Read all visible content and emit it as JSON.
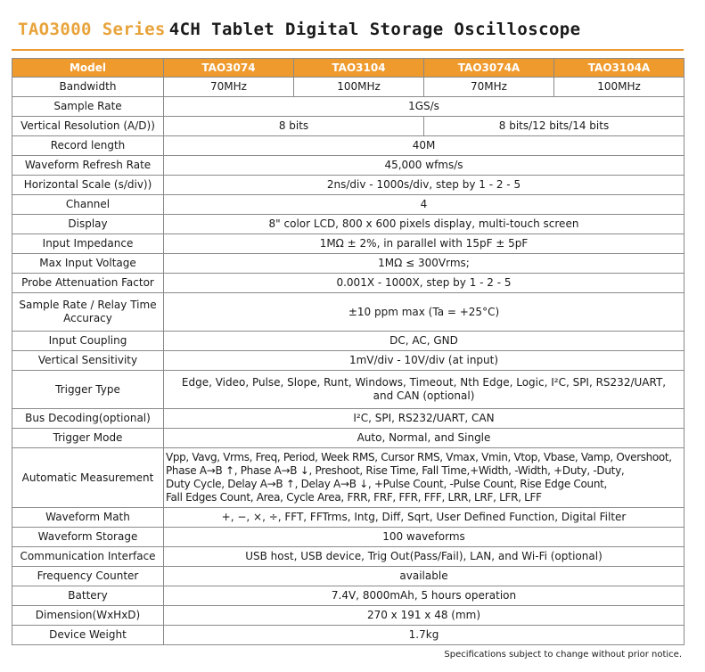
{
  "title": {
    "series": "TAO3000 Series",
    "rest": "4CH Tablet Digital Storage Oscilloscope"
  },
  "table": {
    "header": {
      "model": "Model",
      "m1": "TAO3074",
      "m2": "TAO3104",
      "m3": "TAO3074A",
      "m4": "TAO3104A"
    },
    "bandwidth": {
      "label": "Bandwidth",
      "v1": "70MHz",
      "v2": "100MHz",
      "v3": "70MHz",
      "v4": "100MHz"
    },
    "sample_rate": {
      "label": "Sample Rate",
      "value": "1GS/s"
    },
    "vertical_resolution": {
      "label": "Vertical Resolution (A/D))",
      "v12": "8 bits",
      "v34": "8 bits/12 bits/14 bits"
    },
    "record_length": {
      "label": "Record length",
      "value": "40M"
    },
    "refresh_rate": {
      "label": "Waveform Refresh Rate",
      "value": "45,000 wfms/s"
    },
    "horizontal_scale": {
      "label": "Horizontal Scale (s/div))",
      "value": "2ns/div - 1000s/div, step by 1 - 2 - 5"
    },
    "channel": {
      "label": "Channel",
      "value": "4"
    },
    "display": {
      "label": "Display",
      "value": "8\" color LCD, 800 x 600 pixels display,  multi-touch screen"
    },
    "input_impedance": {
      "label": "Input Impedance",
      "value": "1MΩ ± 2%, in parallel with 15pF ± 5pF"
    },
    "max_input_voltage": {
      "label": "Max Input Voltage",
      "value": "1MΩ ≤ 300Vrms;"
    },
    "probe_attenuation": {
      "label": "Probe Attenuation Factor",
      "value": "0.001X - 1000X,  step by 1 - 2 - 5"
    },
    "relay_accuracy": {
      "label": "Sample Rate / Relay Time Accuracy",
      "value": "±10 ppm max (Ta = +25°C)"
    },
    "input_coupling": {
      "label": "Input Coupling",
      "value": "DC, AC, GND"
    },
    "vertical_sensitivity": {
      "label": "Vertical Sensitivity",
      "value": "1mV/div - 10V/div (at input)"
    },
    "trigger_type": {
      "label": "Trigger Type",
      "line1": "Edge, Video, Pulse, Slope, Runt, Windows, Timeout, Nth Edge, Logic, I²C, SPI, RS232/UART,",
      "line2": "and CAN (optional)"
    },
    "bus_decoding": {
      "label": "Bus Decoding(optional)",
      "value": "I²C, SPI, RS232/UART, CAN"
    },
    "trigger_mode": {
      "label": "Trigger Mode",
      "value": "Auto, Normal, and Single"
    },
    "automatic_measurement": {
      "label": "Automatic Measurement",
      "line1": "Vpp, Vavg, Vrms, Freq, Period, Week RMS, Cursor RMS, Vmax, Vmin, Vtop, Vbase, Vamp, Overshoot,",
      "line2": "Phase A→B ↑, Phase A→B ↓, Preshoot, Rise Time, Fall Time,+Width, -Width, +Duty, -Duty,",
      "line3": "Duty Cycle, Delay A→B ↑, Delay A→B ↓, +Pulse Count, -Pulse Count, Rise Edge Count,",
      "line4": "Fall Edges Count, Area, Cycle Area,  FRR, FRF, FFR, FFF, LRR, LRF, LFR, LFF"
    },
    "waveform_math": {
      "label": "Waveform Math",
      "value": "+, −, ×, ÷, FFT, FFTrms, Intg, Diff, Sqrt, User Defined Function, Digital Filter"
    },
    "waveform_storage": {
      "label": "Waveform Storage",
      "value": "100 waveforms"
    },
    "communication": {
      "label": "Communication Interface",
      "value": "USB host, USB device, Trig Out(Pass/Fail), LAN, and Wi-Fi (optional)"
    },
    "frequency_counter": {
      "label": "Frequency Counter",
      "value": "available"
    },
    "battery": {
      "label": "Battery",
      "value": "7.4V, 8000mAh, 5 hours operation"
    },
    "dimension": {
      "label": "Dimension(WxHxD)",
      "value": "270 x 191 x 48 (mm)"
    },
    "weight": {
      "label": "Device Weight",
      "value": "1.7kg"
    }
  },
  "footer": "Specifications subject to change without prior notice."
}
